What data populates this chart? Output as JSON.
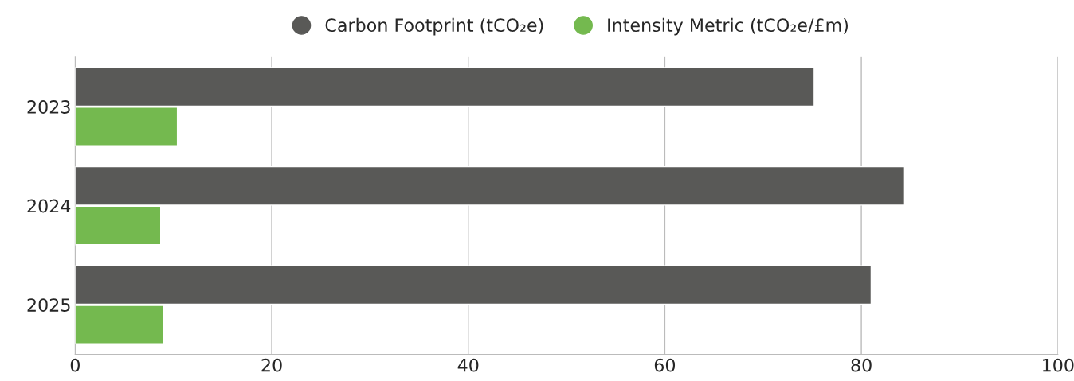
{
  "chart_data": {
    "type": "bar",
    "orientation": "horizontal",
    "categories": [
      "2023",
      "2024",
      "2025"
    ],
    "series": [
      {
        "name": "Carbon Footprint (tCO₂e)",
        "color": "#595957",
        "values": [
          75.2,
          84.4,
          81.0
        ]
      },
      {
        "name": "Intensity Metric (tCO₂e/£m)",
        "color": "#74b94f",
        "values": [
          10.4,
          8.7,
          9.0
        ]
      }
    ],
    "xlim": [
      0,
      100
    ],
    "xticks": [
      0,
      20,
      40,
      60,
      80,
      100
    ],
    "grid": "x",
    "legend": "top",
    "marker": "circle"
  }
}
